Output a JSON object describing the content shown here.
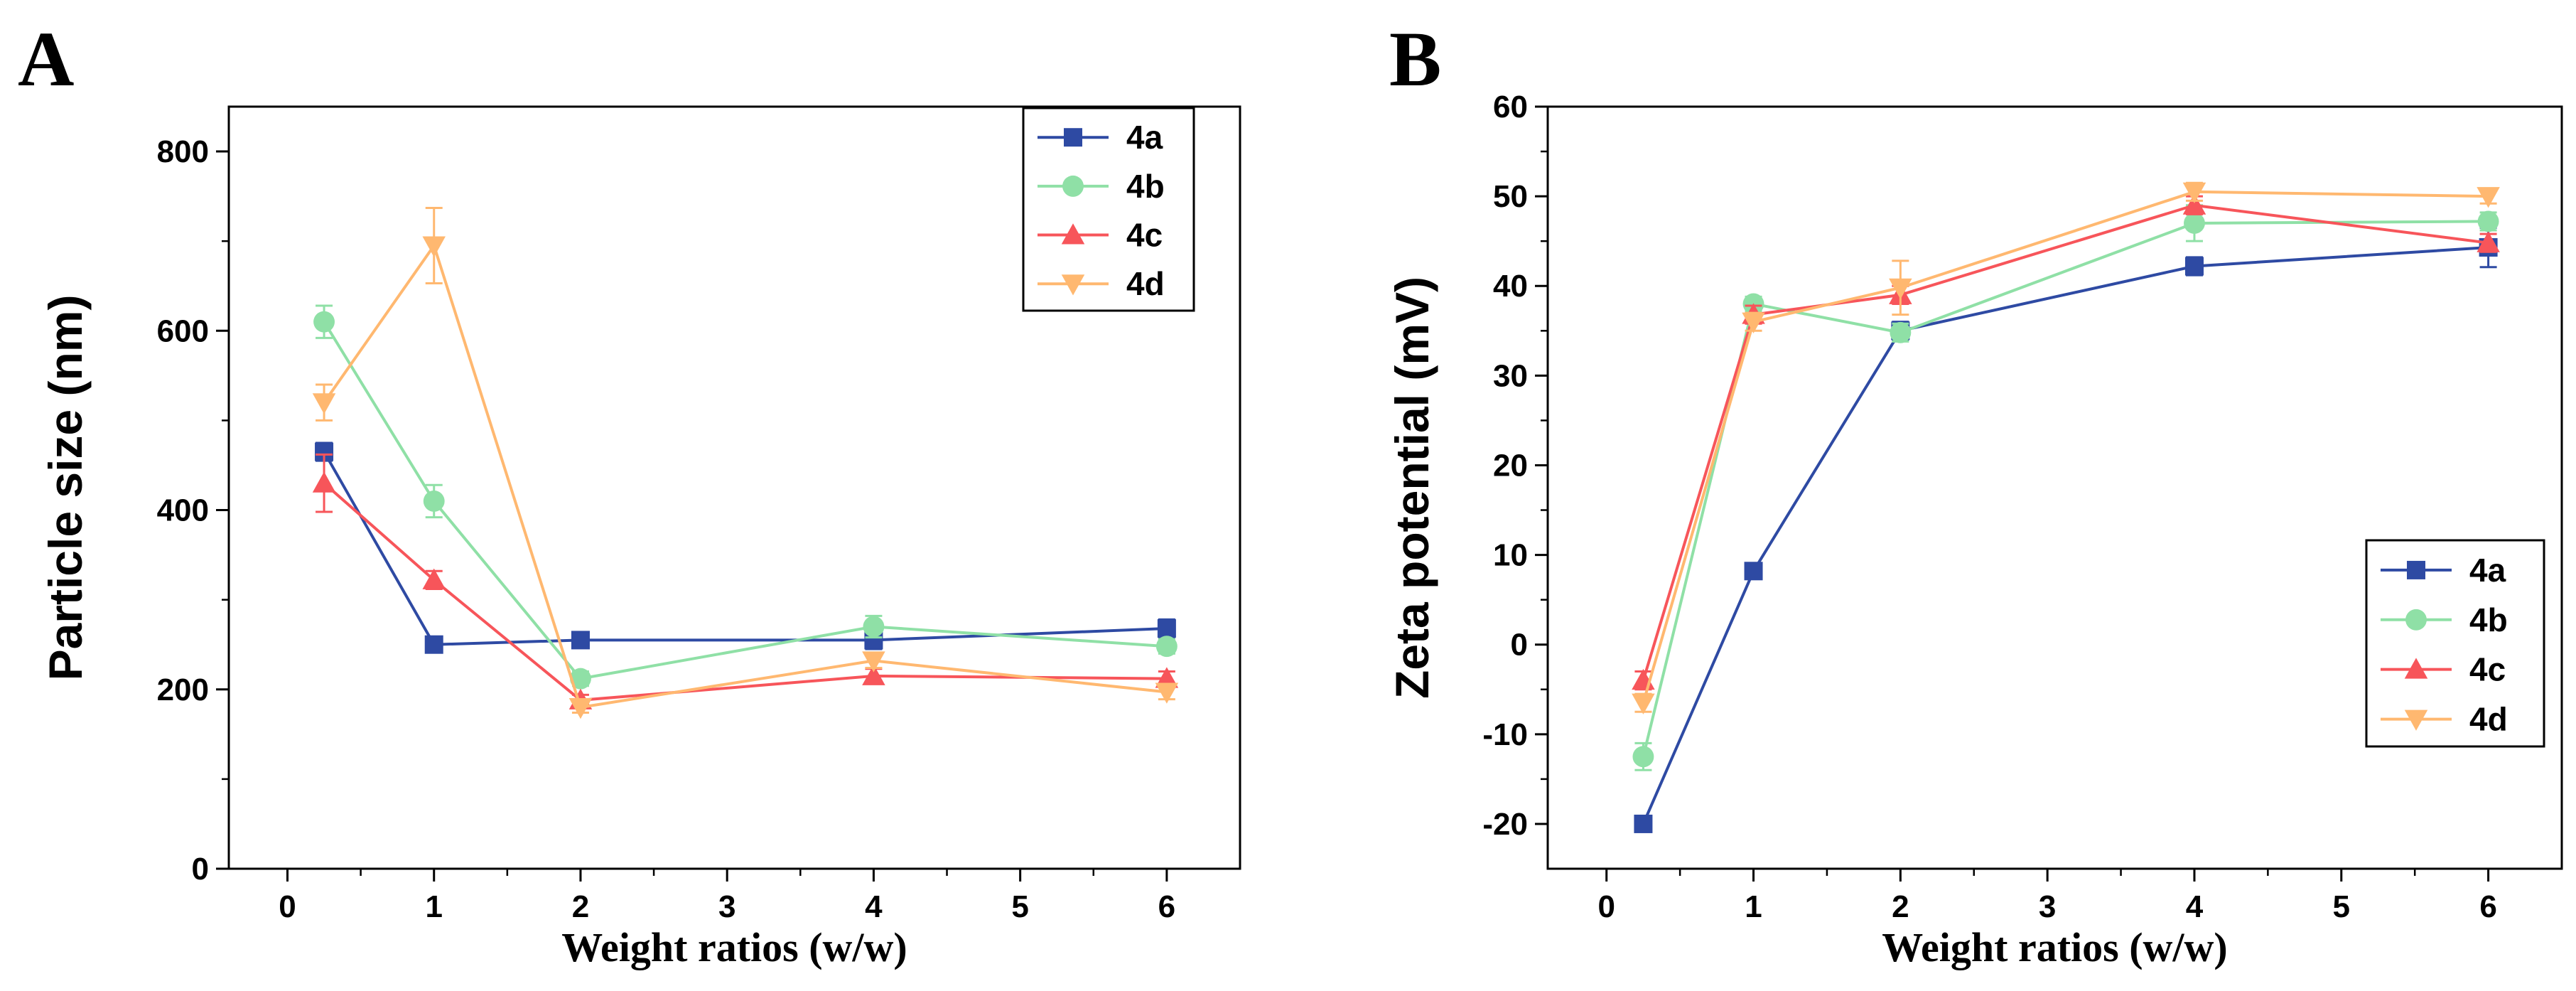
{
  "chart_data": [
    {
      "panel": "A",
      "type": "line",
      "xlabel": "Weight ratios (w/w)",
      "ylabel": "Particle size (nm)",
      "xlim": [
        -0.4,
        6.5
      ],
      "ylim": [
        0,
        850
      ],
      "xticks": [
        0,
        1,
        2,
        3,
        4,
        5,
        6
      ],
      "yticks": [
        0,
        200,
        400,
        600,
        800
      ],
      "legend_position": "top-right",
      "x": [
        0.25,
        1,
        2,
        4,
        6
      ],
      "series": [
        {
          "name": "4a",
          "color": "#2e4aa3",
          "marker": "square",
          "values": [
            465,
            250,
            255,
            255,
            268
          ],
          "errors": [
            10,
            8,
            8,
            10,
            10
          ]
        },
        {
          "name": "4b",
          "color": "#8fe0a6",
          "marker": "circle",
          "values": [
            610,
            410,
            212,
            270,
            248
          ],
          "errors": [
            18,
            18,
            8,
            12,
            8
          ]
        },
        {
          "name": "4c",
          "color": "#f7555a",
          "marker": "triangle-up",
          "values": [
            430,
            322,
            188,
            215,
            212
          ],
          "errors": [
            32,
            10,
            6,
            8,
            8
          ]
        },
        {
          "name": "4d",
          "color": "#ffb870",
          "marker": "triangle-down",
          "values": [
            520,
            695,
            180,
            232,
            197
          ],
          "errors": [
            20,
            42,
            6,
            8,
            8
          ]
        }
      ]
    },
    {
      "panel": "B",
      "type": "line",
      "xlabel": "Weight ratios (w/w)",
      "ylabel": "Zeta potential (mV)",
      "xlim": [
        -0.4,
        6.5
      ],
      "ylim": [
        -25,
        60
      ],
      "xticks": [
        0,
        1,
        2,
        3,
        4,
        5,
        6
      ],
      "yticks": [
        -20,
        -10,
        0,
        10,
        20,
        30,
        40,
        50,
        60
      ],
      "legend_position": "bottom-right",
      "x": [
        0.25,
        1,
        2,
        4,
        6
      ],
      "series": [
        {
          "name": "4a",
          "color": "#2e4aa3",
          "marker": "square",
          "values": [
            -20,
            8.2,
            35,
            42.2,
            44.3
          ],
          "errors": [
            0.6,
            0.6,
            1,
            1,
            2.2
          ]
        },
        {
          "name": "4b",
          "color": "#8fe0a6",
          "marker": "circle",
          "values": [
            -12.5,
            38,
            34.8,
            47,
            47.2
          ],
          "errors": [
            1.5,
            0.8,
            1,
            2,
            1
          ]
        },
        {
          "name": "4c",
          "color": "#f7555a",
          "marker": "triangle-up",
          "values": [
            -4,
            36.8,
            39,
            49,
            44.8
          ],
          "errors": [
            1,
            1,
            1,
            1,
            1
          ]
        },
        {
          "name": "4d",
          "color": "#ffb870",
          "marker": "triangle-down",
          "values": [
            -6.5,
            36,
            39.8,
            50.5,
            50
          ],
          "errors": [
            1,
            1,
            3,
            1,
            0.8
          ]
        }
      ]
    }
  ]
}
